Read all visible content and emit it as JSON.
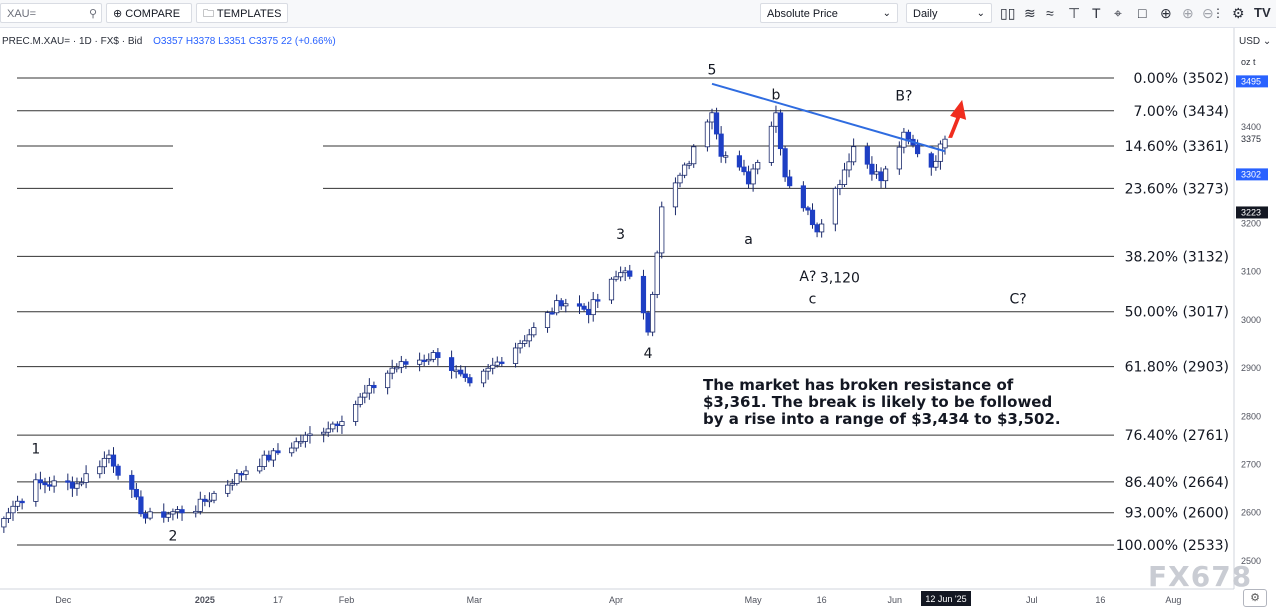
{
  "toolbar": {
    "symbol": "XAU=",
    "compare_label": "COMPARE",
    "templates_label": "TEMPLATES",
    "price_type": "Absolute Price",
    "interval": "Daily",
    "compare_icon": "plus-circle-icon",
    "templates_icon": "folder-icon",
    "search_icon": "search-icon"
  },
  "legend": {
    "symbol_line": "PREC.M.XAU= · 1D · FX$ · Bid",
    "ohlc": "O3357 H3378 L3351 C3375 22 (+0.66%)"
  },
  "axis": {
    "currency": "USD",
    "unit": "oz t",
    "date_marker": "12 Jun '25",
    "price_markers": [
      "3495",
      "3375",
      "3302",
      "3223"
    ]
  },
  "annotation_text": "The market has broken resistance of $3,361. The break is likely to be followed by a rise into a range of $3,434 to $3,502.",
  "watermark": "FX678",
  "colors": {
    "up": "#2962ff",
    "down": "#1e3fc4",
    "trendline": "#2f6ce0",
    "arrow": "#f02d1f",
    "fib": "#333333"
  },
  "chart_data": {
    "type": "candlestick",
    "y_axis": {
      "ticks": [
        2500,
        2600,
        2700,
        2800,
        2900,
        3000,
        3100,
        3200,
        3300,
        3400
      ],
      "ylim": [
        2500,
        3520
      ]
    },
    "x_axis": {
      "ticks": [
        "Dec",
        "2025",
        "17",
        "Feb",
        "Mar",
        "Apr",
        "May",
        "16",
        "Jun",
        "12 Jun '25",
        "Jul",
        "16",
        "Aug"
      ]
    },
    "fib_levels": [
      {
        "label": "0.00% (3502)",
        "value": 3502
      },
      {
        "label": "7.00% (3434)",
        "value": 3434
      },
      {
        "label": "14.60% (3361)",
        "value": 3361
      },
      {
        "label": "23.60% (3273)",
        "value": 3273
      },
      {
        "label": "38.20% (3132)",
        "value": 3132
      },
      {
        "label": "50.00% (3017)",
        "value": 3017
      },
      {
        "label": "61.80% (2903)",
        "value": 2903
      },
      {
        "label": "76.40% (2761)",
        "value": 2761
      },
      {
        "label": "86.40% (2664)",
        "value": 2664
      },
      {
        "label": "93.00% (2600)",
        "value": 2600
      },
      {
        "label": "100.00% (2533)",
        "value": 2533
      }
    ],
    "wave_labels": [
      "1",
      "2",
      "3",
      "4",
      "5",
      "a",
      "b",
      "c",
      "A?",
      "B?",
      "C?",
      "3,120"
    ],
    "trendline": {
      "from_date": "Apr 22",
      "from_value": 3490,
      "to_date": "Jun 12",
      "to_value": 3350
    },
    "arrow": "up-right",
    "anchors": [
      {
        "date": "Nov 14",
        "value": 2560
      },
      {
        "date": "Nov 25",
        "value": 2660
      },
      {
        "date": "Dec 4",
        "value": 2660
      },
      {
        "date": "Dec 11",
        "value": 2720
      },
      {
        "date": "Dec 19",
        "value": 2590
      },
      {
        "date": "Dec 30",
        "value": 2610
      },
      {
        "date": "Jan 10",
        "value": 2690
      },
      {
        "date": "Jan 30",
        "value": 2790
      },
      {
        "date": "Feb 11",
        "value": 2900
      },
      {
        "date": "Feb 21",
        "value": 2930
      },
      {
        "date": "Feb 28",
        "value": 2860
      },
      {
        "date": "Mar 14",
        "value": 2980
      },
      {
        "date": "Mar 20",
        "value": 3040
      },
      {
        "date": "Mar 26",
        "value": 3020
      },
      {
        "date": "Apr 3",
        "value": 3110
      },
      {
        "date": "Apr 8",
        "value": 2980
      },
      {
        "date": "Apr 11",
        "value": 3230
      },
      {
        "date": "Apr 17",
        "value": 3330
      },
      {
        "date": "Apr 22",
        "value": 3440
      },
      {
        "date": "Apr 24",
        "value": 3350
      },
      {
        "date": "Apr 30",
        "value": 3290
      },
      {
        "date": "May 6",
        "value": 3430
      },
      {
        "date": "May 8",
        "value": 3300
      },
      {
        "date": "May 15",
        "value": 3190
      },
      {
        "date": "May 20",
        "value": 3290
      },
      {
        "date": "May 23",
        "value": 3360
      },
      {
        "date": "May 29",
        "value": 3290
      },
      {
        "date": "Jun 3",
        "value": 3380
      },
      {
        "date": "Jun 9",
        "value": 3320
      },
      {
        "date": "Jun 12",
        "value": 3375
      }
    ]
  }
}
